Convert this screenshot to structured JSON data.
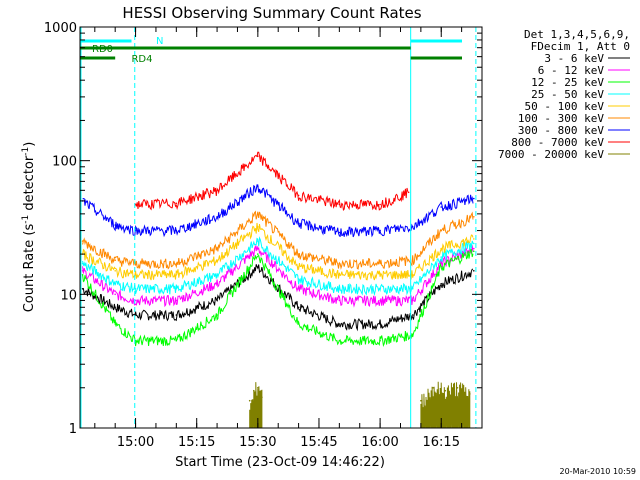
{
  "chart_data": {
    "type": "line",
    "title": "HESSI Observing Summary Count Rates",
    "xlabel": "Start Time (23-Oct-09 14:46:22)",
    "ylabel": "Count Rate (s",
    "ylabel_sup": "-1",
    "ylabel_mid": " detector",
    "ylabel_sup2": "-1",
    "ylabel_end": ")",
    "yscale": "log",
    "ylim": [
      1,
      1000
    ],
    "xlim": [
      "14:46:22",
      "16:25:00"
    ],
    "x_ticks": [
      "15:00",
      "15:15",
      "15:30",
      "15:45",
      "16:00",
      "16:15"
    ],
    "y_ticks": [
      "1",
      "10",
      "100",
      "1000"
    ],
    "legend_header": [
      "Det 1,3,4,5,6,9,",
      "FDecim 1, Att 0"
    ],
    "legend_placement": "right",
    "series": [
      {
        "name": "3 - 6 keV",
        "color": "#000000",
        "x": [
          "14:47",
          "14:55",
          "15:00",
          "15:10",
          "15:20",
          "15:30",
          "15:40",
          "15:50",
          "16:00",
          "16:08",
          "16:15",
          "16:23"
        ],
        "values": [
          11,
          8,
          7,
          7,
          9,
          16,
          8,
          6,
          6,
          7,
          12,
          15
        ]
      },
      {
        "name": "6 - 12 keV",
        "color": "#ff00ff",
        "x": [
          "14:47",
          "14:55",
          "15:00",
          "15:10",
          "15:20",
          "15:30",
          "15:40",
          "15:50",
          "16:00",
          "16:08",
          "16:15",
          "16:23"
        ],
        "values": [
          15,
          10,
          9,
          9,
          12,
          22,
          11,
          9,
          9,
          9,
          17,
          22
        ]
      },
      {
        "name": "12 - 25 keV",
        "color": "#00ff00",
        "x": [
          "14:47",
          "14:55",
          "15:00",
          "15:10",
          "15:20",
          "15:30",
          "15:40",
          "15:50",
          "16:00",
          "16:08",
          "16:15",
          "16:23"
        ],
        "values": [
          14,
          6,
          4.5,
          4.5,
          7,
          20,
          6,
          4.5,
          4.5,
          5,
          16,
          21
        ]
      },
      {
        "name": "25 - 50 keV",
        "color": "#00ffff",
        "x": [
          "14:47",
          "14:55",
          "15:00",
          "15:10",
          "15:20",
          "15:30",
          "15:40",
          "15:50",
          "16:00",
          "16:08",
          "16:15",
          "16:23"
        ],
        "values": [
          17,
          12,
          11,
          11,
          14,
          25,
          13,
          11,
          11,
          11,
          19,
          24
        ]
      },
      {
        "name": "50 - 100 keV",
        "color": "#ffcc00",
        "x": [
          "14:47",
          "14:55",
          "15:00",
          "15:10",
          "15:20",
          "15:30",
          "15:40",
          "15:50",
          "16:00",
          "16:08",
          "16:15",
          "16:23"
        ],
        "values": [
          20,
          15,
          14,
          14,
          18,
          32,
          16,
          14,
          14,
          14,
          22,
          26
        ]
      },
      {
        "name": "100 - 300 keV",
        "color": "#ff8800",
        "x": [
          "14:47",
          "14:55",
          "15:00",
          "15:10",
          "15:20",
          "15:30",
          "15:40",
          "15:50",
          "16:00",
          "16:08",
          "16:15",
          "16:23"
        ],
        "values": [
          25,
          18,
          17,
          17,
          22,
          40,
          20,
          17,
          17,
          18,
          30,
          38
        ]
      },
      {
        "name": "300 - 800 keV",
        "color": "#0000ff",
        "x": [
          "14:47",
          "14:55",
          "15:00",
          "15:10",
          "15:20",
          "15:30",
          "15:40",
          "15:50",
          "16:00",
          "16:08",
          "16:15",
          "16:23"
        ],
        "values": [
          50,
          33,
          30,
          30,
          38,
          64,
          34,
          29,
          30,
          32,
          45,
          52
        ]
      },
      {
        "name": "800 - 7000 keV",
        "color": "#ff0000",
        "x": [
          "15:00",
          "15:10",
          "15:20",
          "15:30",
          "15:40",
          "15:50",
          "16:00",
          "16:07"
        ],
        "values": [
          47,
          48,
          60,
          108,
          55,
          47,
          47,
          58
        ]
      },
      {
        "name": "7000 - 20000 keV",
        "color": "#808000",
        "x": [
          "15:28",
          "15:29",
          "15:30",
          "15:31",
          "16:10",
          "16:13",
          "16:16",
          "16:19",
          "16:22"
        ],
        "values": [
          1.6,
          1.9,
          2.0,
          1.7,
          1.6,
          2.0,
          1.9,
          2.0,
          1.8
        ]
      }
    ],
    "annotations": {
      "night_label": "N",
      "rd0_label": "RD0",
      "rd4_label": "RD4"
    },
    "timestamp": "20-Mar-2010 10:59"
  }
}
